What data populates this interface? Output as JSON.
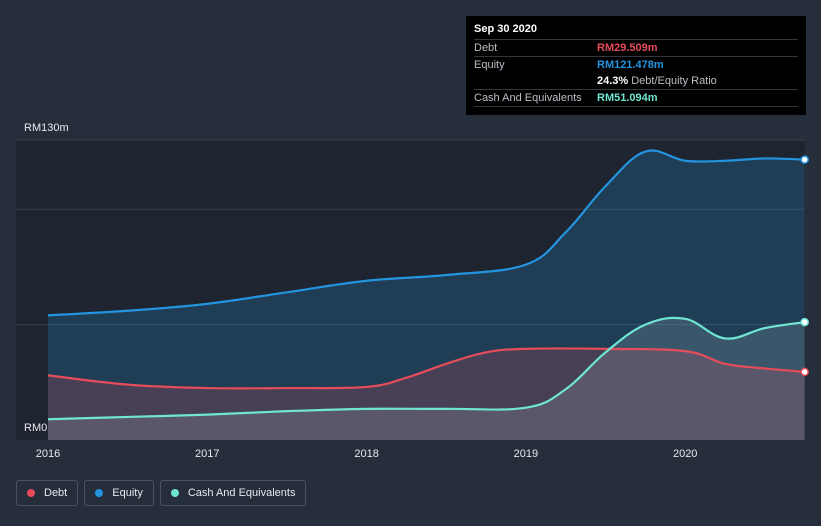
{
  "chart_data": {
    "type": "area",
    "title": "",
    "x_tick_labels": [
      "2016",
      "2017",
      "2018",
      "2019",
      "2020"
    ],
    "x_range": [
      2016.0,
      2020.75
    ],
    "ylim": [
      0,
      130
    ],
    "y_tick_labels": {
      "top": "RM130m",
      "bottom": "RM0"
    },
    "currency_unit": "RM millions",
    "series": [
      {
        "name": "Equity",
        "color": "#2394df",
        "points": [
          [
            2016.0,
            54
          ],
          [
            2016.5,
            56
          ],
          [
            2017.0,
            59
          ],
          [
            2017.5,
            64
          ],
          [
            2018.0,
            69
          ],
          [
            2018.5,
            71.5
          ],
          [
            2019.0,
            76
          ],
          [
            2019.25,
            90
          ],
          [
            2019.5,
            110
          ],
          [
            2019.75,
            125
          ],
          [
            2020.0,
            121
          ],
          [
            2020.25,
            121
          ],
          [
            2020.5,
            122
          ],
          [
            2020.75,
            121.478
          ]
        ]
      },
      {
        "name": "Debt",
        "color": "#e64c5a",
        "points": [
          [
            2016.0,
            28
          ],
          [
            2016.5,
            24
          ],
          [
            2017.0,
            22.5
          ],
          [
            2017.5,
            22.5
          ],
          [
            2018.0,
            23
          ],
          [
            2018.25,
            27
          ],
          [
            2018.5,
            33
          ],
          [
            2018.75,
            38
          ],
          [
            2019.0,
            39.5
          ],
          [
            2019.5,
            39.5
          ],
          [
            2020.0,
            38.5
          ],
          [
            2020.25,
            33
          ],
          [
            2020.5,
            31
          ],
          [
            2020.75,
            29.509
          ]
        ]
      },
      {
        "name": "Cash And Equivalents",
        "color": "#6ee6d2",
        "points": [
          [
            2016.0,
            9
          ],
          [
            2016.5,
            10
          ],
          [
            2017.0,
            11
          ],
          [
            2017.5,
            12.5
          ],
          [
            2018.0,
            13.5
          ],
          [
            2018.5,
            13.5
          ],
          [
            2019.0,
            14
          ],
          [
            2019.25,
            22
          ],
          [
            2019.5,
            38
          ],
          [
            2019.75,
            50
          ],
          [
            2020.0,
            52.5
          ],
          [
            2020.25,
            44
          ],
          [
            2020.5,
            48.5
          ],
          [
            2020.75,
            51.094
          ]
        ]
      }
    ]
  },
  "tooltip": {
    "date": "Sep 30 2020",
    "rows": [
      {
        "label": "Debt",
        "value": "RM29.509m",
        "color": "#e64c5a"
      },
      {
        "label": "Equity",
        "value": "RM121.478m",
        "color": "#2394df"
      },
      {
        "label": "Cash And Equivalents",
        "value": "RM51.094m",
        "color": "#6ee6d2"
      }
    ],
    "ratio": {
      "value": "24.3%",
      "label": "Debt/Equity Ratio"
    }
  },
  "legend": [
    {
      "label": "Debt",
      "color": "#e64c5a"
    },
    {
      "label": "Equity",
      "color": "#2394df"
    },
    {
      "label": "Cash And Equivalents",
      "color": "#6ee6d2"
    }
  ]
}
